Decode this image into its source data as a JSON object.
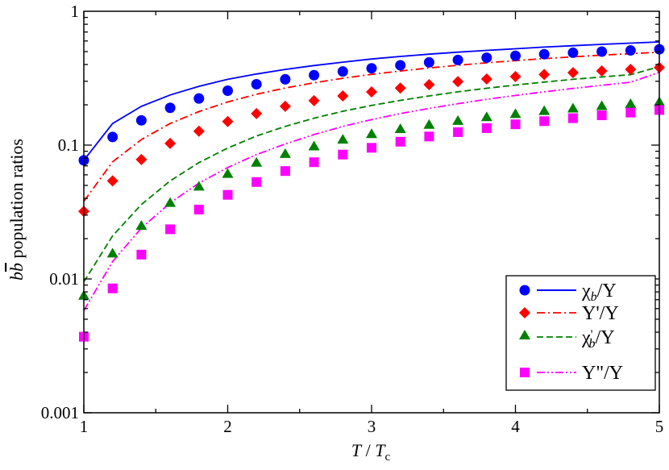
{
  "chart_data": {
    "type": "scatter",
    "title": "",
    "x": [
      1,
      1.2,
      1.4,
      1.6,
      1.8,
      2,
      2.2,
      2.4,
      2.6,
      2.8,
      3,
      3.2,
      3.4,
      3.6,
      3.8,
      4,
      4.2,
      4.4,
      4.6,
      4.8,
      5
    ],
    "xlim": [
      1,
      5
    ],
    "ylim": [
      0.001,
      1
    ],
    "yscale": "log",
    "xlabel": {
      "italic_main": "T",
      "slash": " / ",
      "italic_sub_main": "T",
      "subscript": "c"
    },
    "ylabel": {
      "b1": "b",
      "b2": "b",
      "rest": " population ratios"
    },
    "x_tick_labels": [
      "1",
      "2",
      "3",
      "4",
      "5"
    ],
    "y_tick_labels": [
      "0.001",
      "0.01",
      "0.1",
      "1"
    ],
    "legend_position": "bottom-right",
    "legend": [
      {
        "main": "χ",
        "sub": "b",
        "rest": "/Υ"
      },
      {
        "main": "Υ'/Υ",
        "sub": "",
        "rest": ""
      },
      {
        "main": "χ",
        "sub": "b",
        "rest": "/Υ",
        "prime": "'"
      },
      {
        "main": "Υ\"/Υ",
        "sub": "",
        "rest": ""
      }
    ],
    "series": [
      {
        "color": "#0000ff",
        "marker": "circle",
        "line": "solid",
        "points": [
          0.077,
          0.115,
          0.153,
          0.19,
          0.223,
          0.255,
          0.285,
          0.31,
          0.333,
          0.355,
          0.375,
          0.395,
          0.415,
          0.433,
          0.45,
          0.465,
          0.478,
          0.49,
          0.5,
          0.51,
          0.52
        ],
        "curve": [
          0.077,
          0.145,
          0.195,
          0.237,
          0.275,
          0.31,
          0.34,
          0.368,
          0.393,
          0.417,
          0.44,
          0.46,
          0.478,
          0.495,
          0.51,
          0.525,
          0.54,
          0.553,
          0.566,
          0.578,
          0.59
        ]
      },
      {
        "color": "#ff0000",
        "marker": "diamond",
        "line": "dashdot",
        "points": [
          0.032,
          0.054,
          0.078,
          0.103,
          0.127,
          0.15,
          0.172,
          0.195,
          0.215,
          0.233,
          0.25,
          0.267,
          0.283,
          0.298,
          0.312,
          0.325,
          0.337,
          0.348,
          0.358,
          0.368,
          0.38
        ],
        "curve": [
          0.038,
          0.075,
          0.11,
          0.145,
          0.178,
          0.21,
          0.24,
          0.267,
          0.292,
          0.316,
          0.338,
          0.358,
          0.377,
          0.395,
          0.412,
          0.428,
          0.443,
          0.457,
          0.47,
          0.482,
          0.495
        ]
      },
      {
        "color": "#008000",
        "marker": "triangle",
        "line": "dashed",
        "points": [
          0.0075,
          0.0155,
          0.025,
          0.037,
          0.049,
          0.061,
          0.074,
          0.086,
          0.098,
          0.11,
          0.121,
          0.132,
          0.142,
          0.152,
          0.162,
          0.171,
          0.18,
          0.188,
          0.196,
          0.203,
          0.21
        ],
        "curve": [
          0.0095,
          0.021,
          0.036,
          0.054,
          0.074,
          0.095,
          0.117,
          0.138,
          0.159,
          0.179,
          0.198,
          0.216,
          0.233,
          0.25,
          0.266,
          0.281,
          0.296,
          0.31,
          0.323,
          0.336,
          0.385
        ]
      },
      {
        "color": "#ff00ff",
        "marker": "square",
        "line": "dashdotdot",
        "points": [
          0.0037,
          0.0085,
          0.0152,
          0.0235,
          0.033,
          0.0425,
          0.053,
          0.064,
          0.0745,
          0.085,
          0.0955,
          0.106,
          0.116,
          0.125,
          0.134,
          0.143,
          0.151,
          0.159,
          0.167,
          0.175,
          0.183
        ],
        "curve": [
          0.0058,
          0.0135,
          0.024,
          0.037,
          0.052,
          0.068,
          0.085,
          0.102,
          0.12,
          0.138,
          0.155,
          0.172,
          0.188,
          0.204,
          0.22,
          0.235,
          0.25,
          0.265,
          0.28,
          0.295,
          0.35
        ]
      }
    ]
  }
}
